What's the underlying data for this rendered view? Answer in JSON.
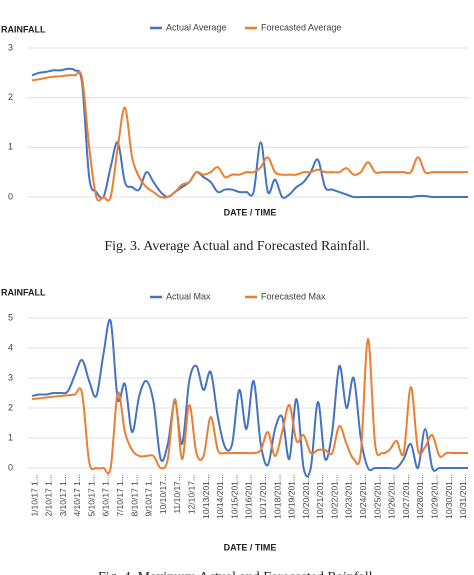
{
  "chart_data": [
    {
      "type": "line",
      "y_label": "RAINFALL",
      "x_label": "DATE / TIME",
      "caption": "Fig. 3.    Average Actual and Forecasted Rainfall.",
      "ylim": [
        0,
        3
      ],
      "yticks": [
        0,
        1,
        2,
        3
      ],
      "grid": true,
      "legend": "top",
      "series": [
        {
          "name": "Actual Average",
          "color": "#4472c4",
          "values": [
            2.45,
            2.5,
            2.52,
            2.55,
            2.55,
            2.58,
            2.55,
            2.3,
            0.4,
            0.1,
            0,
            0.6,
            1.1,
            0.3,
            0.2,
            0.15,
            0.5,
            0.3,
            0.1,
            0,
            0.1,
            0.2,
            0.3,
            0.5,
            0.4,
            0.3,
            0.1,
            0.15,
            0.15,
            0.1,
            0.1,
            0.1,
            1.1,
            0.1,
            0.35,
            0,
            0.05,
            0.2,
            0.3,
            0.5,
            0.75,
            0.2,
            0.15,
            0.1,
            0.05,
            0,
            0,
            0,
            0,
            0,
            0,
            0,
            0,
            0,
            0.02,
            0.02,
            0,
            0,
            0,
            0,
            0,
            0
          ]
        },
        {
          "name": "Forecasted Average",
          "color": "#ed7d31",
          "values": [
            2.35,
            2.37,
            2.4,
            2.42,
            2.43,
            2.45,
            2.45,
            2.4,
            1.0,
            0,
            0,
            0,
            1.0,
            1.8,
            0.8,
            0.4,
            0.2,
            0.1,
            0,
            0,
            0.1,
            0.25,
            0.3,
            0.5,
            0.45,
            0.5,
            0.6,
            0.4,
            0.45,
            0.45,
            0.5,
            0.5,
            0.6,
            0.8,
            0.5,
            0.45,
            0.45,
            0.45,
            0.5,
            0.5,
            0.55,
            0.5,
            0.5,
            0.5,
            0.58,
            0.45,
            0.5,
            0.7,
            0.5,
            0.5,
            0.5,
            0.5,
            0.5,
            0.5,
            0.8,
            0.5,
            0.5,
            0.5,
            0.5,
            0.5,
            0.5,
            0.5
          ]
        }
      ]
    },
    {
      "type": "line",
      "y_label": "RAINFALL",
      "x_label": "DATE / TIME",
      "caption": "Fig. 4.    Maximum Actual and Forecasted Rainfall.",
      "ylim": [
        0,
        5
      ],
      "yticks": [
        0,
        1,
        2,
        3,
        4,
        5
      ],
      "grid": true,
      "legend": "top",
      "categories": [
        "1/10/17 1...",
        null,
        "2/10/17 1...",
        null,
        "3/10/17 1...",
        null,
        "4/10/17 1...",
        null,
        "5/10/17 1...",
        null,
        "6/10/17 1...",
        null,
        "7/10/17 1...",
        null,
        "8/10/17 1...",
        null,
        "9/10/17 1...",
        null,
        "10/10/17...",
        null,
        "11/10/17...",
        null,
        "12/10/17...",
        null,
        "10/13/201...",
        null,
        "10/14/201...",
        null,
        "10/15/201...",
        null,
        "10/16/201...",
        null,
        "10/17/201...",
        null,
        "10/18/201...",
        null,
        "10/19/201...",
        null,
        "10/20/201...",
        null,
        "10/21/201...",
        null,
        "10/22/201...",
        null,
        "10/23/201...",
        null,
        "10/24/201...",
        null,
        "10/25/201...",
        null,
        "10/26/201...",
        null,
        "10/27/201...",
        null,
        "10/28/201...",
        null,
        "10/29/201...",
        null,
        "10/30/201...",
        null,
        "10/31/201...",
        null
      ],
      "series": [
        {
          "name": "Actual Max",
          "color": "#4472c4",
          "values": [
            2.4,
            2.45,
            2.45,
            2.5,
            2.5,
            2.55,
            3.1,
            3.6,
            2.9,
            2.4,
            3.8,
            4.9,
            2.3,
            2.8,
            1.2,
            2.4,
            2.9,
            2.2,
            0.3,
            0.8,
            2.2,
            0.8,
            2.9,
            3.4,
            2.6,
            3.2,
            1.7,
            0.7,
            0.8,
            2.6,
            1.3,
            2.9,
            0.8,
            0.1,
            1.3,
            1.7,
            0.3,
            2.3,
            0,
            0,
            2.2,
            0.3,
            1.2,
            3.4,
            2.0,
            3.0,
            1.0,
            0,
            0,
            0,
            0,
            0,
            0.3,
            0.8,
            0,
            1.3,
            0,
            0,
            0,
            0,
            0,
            0
          ]
        },
        {
          "name": "Forecasted Max",
          "color": "#ed7d31",
          "values": [
            2.3,
            2.32,
            2.35,
            2.38,
            2.4,
            2.42,
            2.45,
            2.5,
            0.2,
            0,
            0,
            0,
            2.5,
            1.2,
            0.6,
            0.4,
            0.4,
            0.4,
            0,
            0.3,
            2.3,
            0.3,
            2.1,
            0.5,
            0.4,
            1.7,
            0.6,
            0.5,
            0.5,
            0.5,
            0.5,
            0.5,
            0.6,
            1.2,
            0.4,
            1.2,
            2.1,
            0.9,
            1.1,
            0.5,
            0.6,
            0.6,
            0.5,
            1.4,
            0.8,
            0.3,
            0.5,
            4.3,
            0.8,
            0.5,
            0.6,
            0.9,
            0.5,
            2.7,
            0.6,
            0.7,
            1.1,
            0.4,
            0.5,
            0.5,
            0.5,
            0.5
          ]
        }
      ]
    }
  ]
}
